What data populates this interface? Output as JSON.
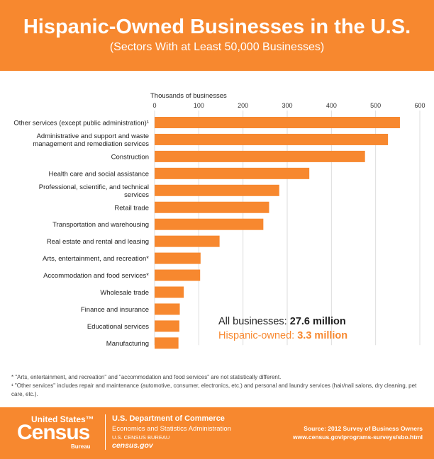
{
  "header": {
    "title": "Hispanic-Owned Businesses in the U.S.",
    "subtitle": "(Sectors With at Least 50,000 Businesses)"
  },
  "chart_data": {
    "type": "bar",
    "orientation": "horizontal",
    "title": "Hispanic-Owned Businesses in the U.S.",
    "subtitle": "(Sectors With at Least 50,000 Businesses)",
    "xlabel": "Thousands of businesses",
    "xlim": [
      0,
      600
    ],
    "xticks": [
      0,
      100,
      200,
      300,
      400,
      500,
      600
    ],
    "grid": true,
    "bar_color": "#f7882f",
    "categories": [
      "Other services (except public administration)¹",
      "Administrative and support and waste management and remediation services",
      "Construction",
      "Health care and social assistance",
      "Professional, scientific, and technical services",
      "Retail trade",
      "Transportation and warehousing",
      "Real estate and rental and leasing",
      "Arts, entertainment, and recreation*",
      "Accommodation and food services*",
      "Wholesale trade",
      "Finance and insurance",
      "Educational services",
      "Manufacturing"
    ],
    "values": [
      555,
      528,
      476,
      350,
      282,
      259,
      246,
      147,
      104,
      103,
      66,
      57,
      56,
      54
    ]
  },
  "callouts": {
    "all_label": "All businesses:",
    "all_value": "27.6 million",
    "hisp_label": "Hispanic-owned:",
    "hisp_value": "3.3 million"
  },
  "notes": {
    "note1": "* \"Arts, entertainment, and recreation\" and \"accommodation and food services\" are not statistically different.",
    "note2": "¹ \"Other services\" includes repair and maintenance (automotive, consumer, electronics, etc.) and personal and laundry services (hair/nail salons, dry cleaning, pet care, etc.)."
  },
  "footer": {
    "logo_us": "United States™",
    "logo_census": "Census",
    "logo_bureau": "Bureau",
    "department": "U.S. Department of Commerce",
    "administration": "Economics and Statistics Administration",
    "bureau": "U.S. CENSUS BUREAU",
    "website": "census.gov",
    "source": "Source: 2012 Survey of Business Owners",
    "source_url": "www.census.gov/programs-surveys/sbo.html"
  },
  "colors": {
    "accent": "#f7882f",
    "text": "#222222",
    "grid": "#dddddd"
  }
}
